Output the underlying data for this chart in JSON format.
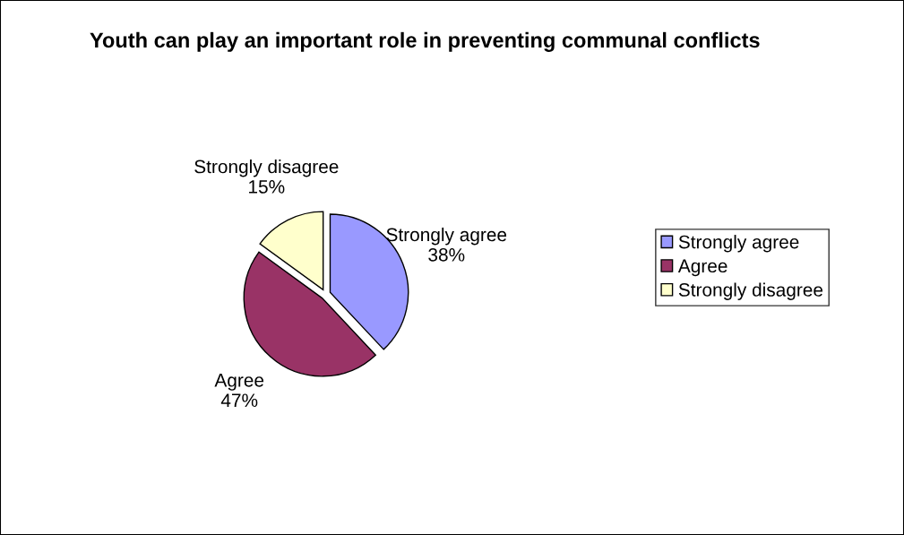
{
  "chart_data": {
    "type": "pie",
    "title": "Youth can play an important role in preventing communal conflicts",
    "categories": [
      "Strongly agree",
      "Agree",
      "Strongly disagree"
    ],
    "values": [
      38,
      47,
      15
    ],
    "value_labels": [
      "38%",
      "47%",
      "15%"
    ],
    "colors": [
      "#9999ff",
      "#993366",
      "#ffffcc"
    ],
    "legend": "right"
  }
}
